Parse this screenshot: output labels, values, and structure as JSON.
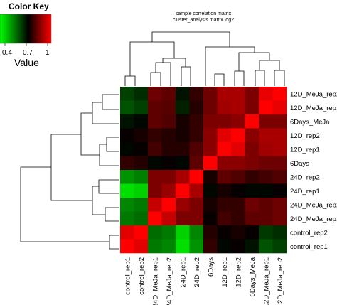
{
  "chart_data": {
    "type": "heatmap",
    "title": "sample correlation matrix",
    "subtitle": "cluster_analysis.matrix.log2",
    "color_key": {
      "title": "Color Key",
      "axis_label": "Value",
      "ticks": [
        "0.4",
        "0.7",
        "1"
      ],
      "tick_values": [
        0.4,
        0.7,
        1.0
      ],
      "low_color": "#00ff00",
      "mid_color": "#000000",
      "high_color": "#ff0000",
      "range": [
        0.25,
        1.0
      ]
    },
    "columns": [
      "control_rep1",
      "control_rep2",
      "24D_MeJa_rep1",
      "24D_MeJa_rep2",
      "24D_rep1",
      "24D_rep2",
      "6Days",
      "12D_rep1",
      "12D_rep2",
      "6Days_MeJa",
      "12D_MeJa_rep1",
      "12D_MeJa_rep2"
    ],
    "rows": [
      "12D_MeJa_rep2",
      "12D_MeJa_rep1",
      "6Days_MeJa",
      "12D_rep2",
      "12D_rep1",
      "6Days",
      "24D_rep2",
      "24D_rep1",
      "24D_MeJa_rep2",
      "24D_MeJa_rep1",
      "control_rep2",
      "control_rep1"
    ],
    "values": [
      [
        0.55,
        0.58,
        0.8,
        0.78,
        0.62,
        0.72,
        0.8,
        0.88,
        0.88,
        0.82,
        0.97,
        1.0
      ],
      [
        0.52,
        0.55,
        0.78,
        0.77,
        0.6,
        0.7,
        0.8,
        0.87,
        0.88,
        0.82,
        1.0,
        0.97
      ],
      [
        0.62,
        0.64,
        0.78,
        0.76,
        0.68,
        0.72,
        0.82,
        0.82,
        0.84,
        1.0,
        0.82,
        0.82
      ],
      [
        0.66,
        0.68,
        0.72,
        0.7,
        0.68,
        0.72,
        0.84,
        0.96,
        1.0,
        0.84,
        0.88,
        0.88
      ],
      [
        0.64,
        0.66,
        0.74,
        0.7,
        0.7,
        0.76,
        0.84,
        1.0,
        0.96,
        0.82,
        0.87,
        0.88
      ],
      [
        0.72,
        0.7,
        0.64,
        0.66,
        0.64,
        0.78,
        1.0,
        0.84,
        0.84,
        0.82,
        0.8,
        0.8
      ],
      [
        0.42,
        0.45,
        0.82,
        0.82,
        0.88,
        1.0,
        0.68,
        0.78,
        0.76,
        0.72,
        0.74,
        0.76
      ],
      [
        0.3,
        0.32,
        0.82,
        0.86,
        1.0,
        0.88,
        0.64,
        0.68,
        0.66,
        0.64,
        0.64,
        0.66
      ],
      [
        0.44,
        0.46,
        0.92,
        1.0,
        0.86,
        0.82,
        0.68,
        0.72,
        0.72,
        0.8,
        0.78,
        0.8
      ],
      [
        0.46,
        0.48,
        1.0,
        0.92,
        0.82,
        0.82,
        0.66,
        0.74,
        0.72,
        0.78,
        0.78,
        0.8
      ],
      [
        0.96,
        1.0,
        0.48,
        0.46,
        0.32,
        0.44,
        0.7,
        0.66,
        0.68,
        0.66,
        0.56,
        0.58
      ],
      [
        1.0,
        0.96,
        0.46,
        0.44,
        0.3,
        0.42,
        0.72,
        0.64,
        0.66,
        0.62,
        0.52,
        0.55
      ]
    ]
  }
}
